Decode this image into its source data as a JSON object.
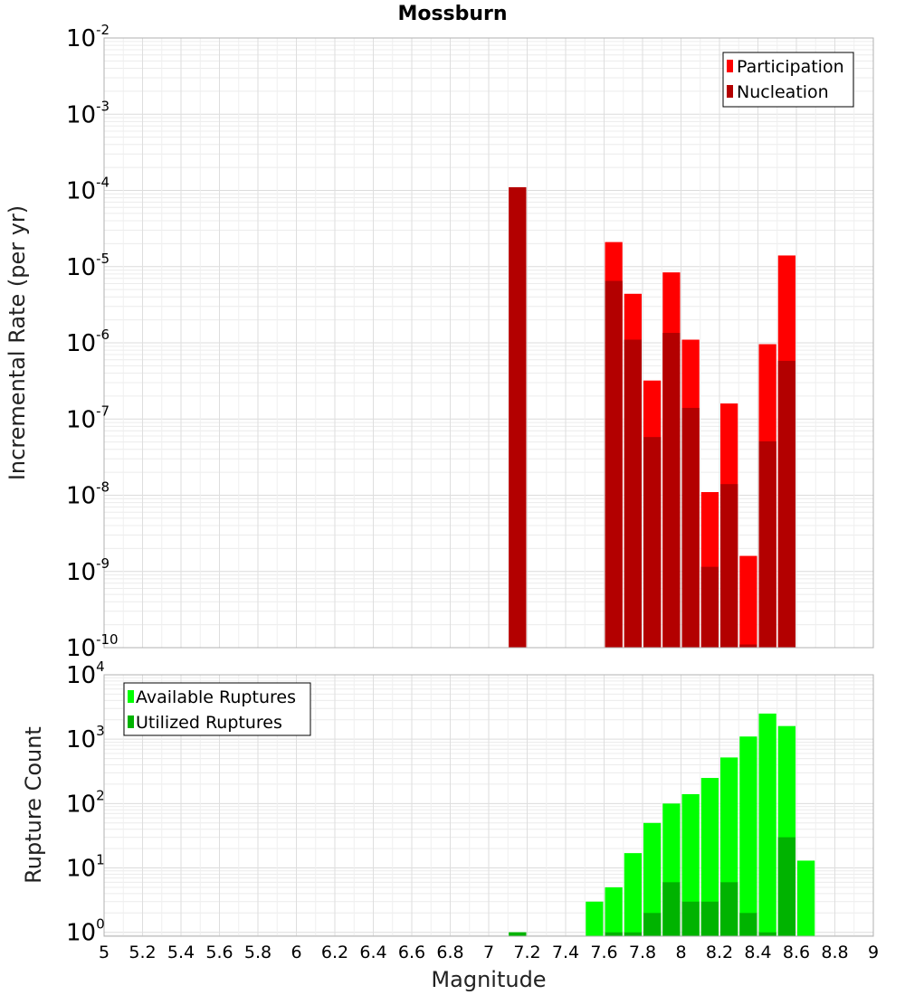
{
  "chart_data": {
    "title": "Mossburn",
    "xlabel": "Magnitude",
    "xlim": [
      5,
      9
    ],
    "x_ticks": [
      "5",
      "5.2",
      "5.4",
      "5.6",
      "5.8",
      "6",
      "6.2",
      "6.4",
      "6.6",
      "6.8",
      "7",
      "7.2",
      "7.4",
      "7.6",
      "7.8",
      "8",
      "8.2",
      "8.4",
      "8.6",
      "8.8",
      "9"
    ],
    "bin_width": 0.1,
    "panels": [
      {
        "type": "bar",
        "scale": "log",
        "ylabel": "Incremental Rate (per yr)",
        "ylim_exp": [
          -10,
          -2
        ],
        "y_ticks": [
          {
            "exp": -2,
            "base": "10",
            "sup": "-2"
          },
          {
            "exp": -3,
            "base": "10",
            "sup": "-3"
          },
          {
            "exp": -4,
            "base": "10",
            "sup": "-4"
          },
          {
            "exp": -5,
            "base": "10",
            "sup": "-5"
          },
          {
            "exp": -6,
            "base": "10",
            "sup": "-6"
          },
          {
            "exp": -7,
            "base": "10",
            "sup": "-7"
          },
          {
            "exp": -8,
            "base": "10",
            "sup": "-8"
          },
          {
            "exp": -9,
            "base": "10",
            "sup": "-9"
          },
          {
            "exp": -10,
            "base": "10",
            "sup": "-10"
          }
        ],
        "legend": [
          {
            "label": "Participation",
            "color": "#ff0000"
          },
          {
            "label": "Nucleation",
            "color": "#b30000"
          }
        ],
        "series": [
          {
            "name": "Participation",
            "color": "#ff0000",
            "x": [
              7.15,
              7.65,
              7.75,
              7.85,
              7.95,
              8.05,
              8.15,
              8.25,
              8.35,
              8.45,
              8.55
            ],
            "values": [
              0.00011,
              2.1e-05,
              4.4e-06,
              3.2e-07,
              8.4e-06,
              1.1e-06,
              1.1e-08,
              1.6e-07,
              1.6e-09,
              9.6e-07,
              1.4e-05
            ]
          },
          {
            "name": "Nucleation",
            "color": "#b30000",
            "x": [
              7.15,
              7.65,
              7.75,
              7.85,
              7.95,
              8.05,
              8.15,
              8.25,
              8.35,
              8.45,
              8.55
            ],
            "values": [
              0.00011,
              6.5e-06,
              1.1e-06,
              5.8e-08,
              1.35e-06,
              1.4e-07,
              1.15e-09,
              1.4e-08,
              1.1e-10,
              5.1e-08,
              5.8e-07
            ]
          }
        ]
      },
      {
        "type": "bar",
        "scale": "log",
        "ylabel": "Rupture Count",
        "ylim_exp": [
          -0.06,
          4
        ],
        "y_ticks": [
          {
            "exp": 4,
            "base": "10",
            "sup": "4"
          },
          {
            "exp": 3,
            "base": "10",
            "sup": "3"
          },
          {
            "exp": 2,
            "base": "10",
            "sup": "2"
          },
          {
            "exp": 1,
            "base": "10",
            "sup": "1"
          },
          {
            "exp": 0,
            "base": "10",
            "sup": "0"
          }
        ],
        "legend": [
          {
            "label": "Available Ruptures",
            "color": "#00ff00"
          },
          {
            "label": "Utilized Ruptures",
            "color": "#00b300"
          }
        ],
        "series": [
          {
            "name": "Available Ruptures",
            "color": "#00ff00",
            "x": [
              7.15,
              7.55,
              7.65,
              7.75,
              7.85,
              7.95,
              8.05,
              8.15,
              8.25,
              8.35,
              8.45,
              8.55,
              8.65
            ],
            "values": [
              1,
              3,
              5,
              17,
              50,
              100,
              140,
              250,
              520,
              1100,
              2500,
              1600,
              13
            ]
          },
          {
            "name": "Utilized Ruptures",
            "color": "#00b300",
            "x": [
              7.15,
              7.65,
              7.75,
              7.85,
              7.95,
              8.05,
              8.15,
              8.25,
              8.35,
              8.45,
              8.55
            ],
            "values": [
              1,
              1,
              1,
              2,
              6,
              3,
              3,
              6,
              2,
              1,
              30
            ]
          }
        ]
      }
    ]
  }
}
